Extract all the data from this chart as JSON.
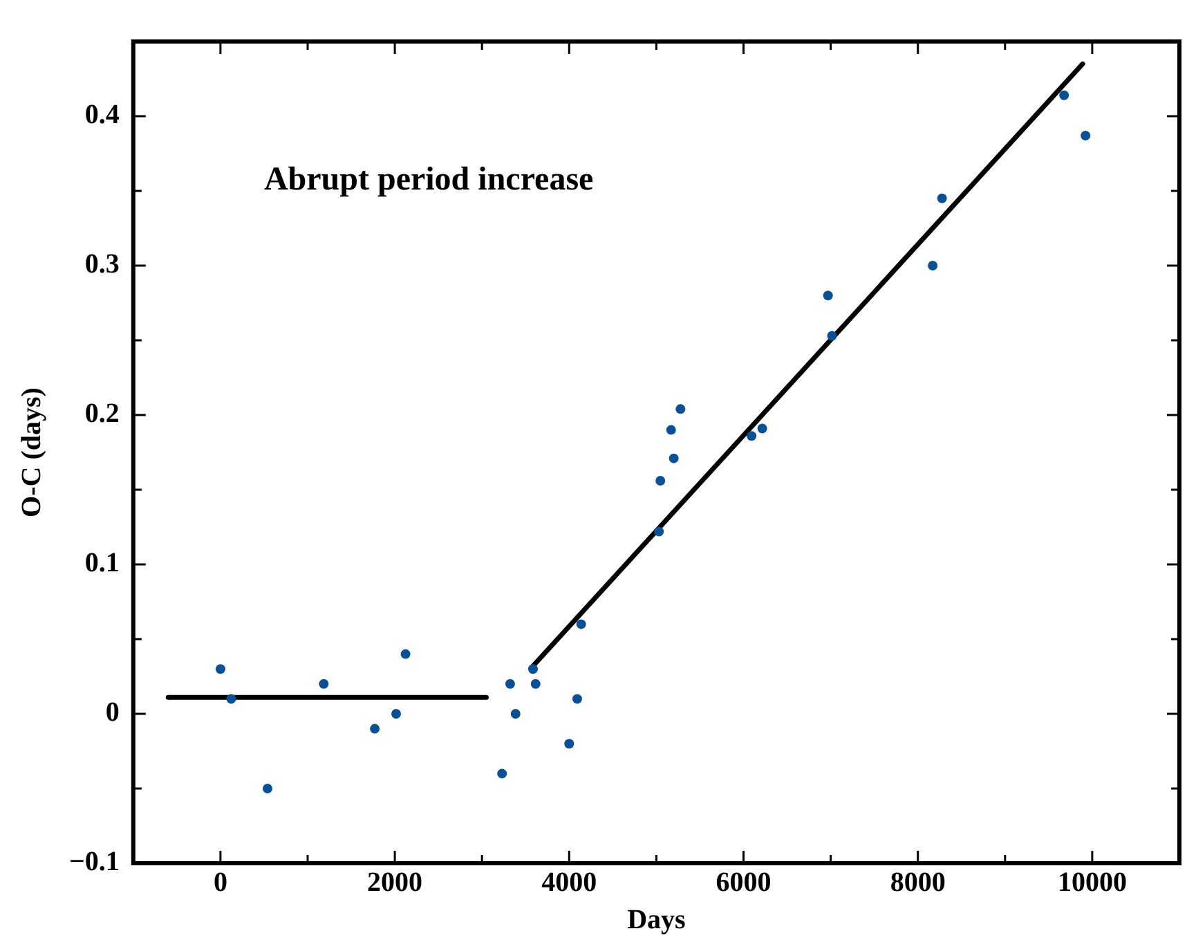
{
  "chart_data": {
    "type": "scatter",
    "xlabel": "Days",
    "ylabel": "O-C (days)",
    "annotations": [
      "Abrupt period increase"
    ],
    "xlim": [
      -1000,
      11000
    ],
    "ylim": [
      -0.1,
      0.45
    ],
    "xticks": [
      {
        "value": -1000,
        "label": null
      },
      0,
      {
        "value": 1000,
        "label": null
      },
      2000,
      {
        "value": 3000,
        "label": null
      },
      4000,
      {
        "value": 5000,
        "label": null
      },
      6000,
      {
        "value": 7000,
        "label": null
      },
      8000,
      {
        "value": 9000,
        "label": null
      },
      10000
    ],
    "yticks": [
      -0.1,
      {
        "value": -0.05,
        "label": null
      },
      0,
      {
        "value": 0.05,
        "label": null
      },
      0.1,
      {
        "value": 0.15,
        "label": null
      },
      0.2,
      {
        "value": 0.25,
        "label": null
      },
      0.3,
      {
        "value": 0.35,
        "label": null
      },
      0.4
    ],
    "grid": false,
    "legend": false,
    "series": [
      {
        "marker": "circle",
        "color": "#0b4f94",
        "x": [
          0,
          123,
          540,
          1185,
          1770,
          2015,
          2123,
          3230,
          3323,
          3385,
          3585,
          3615,
          4000,
          4092,
          4138,
          5030,
          5046,
          5169,
          5200,
          5277,
          6092,
          6215,
          6969,
          7015,
          8170,
          8277,
          9677,
          9923
        ],
        "values": [
          0.03,
          0.01,
          -0.05,
          0.02,
          -0.01,
          0,
          0.04,
          -0.04,
          0.02,
          0,
          0.03,
          0.02,
          -0.02,
          0.01,
          0.06,
          0.122,
          0.156,
          0.19,
          0.171,
          0.204,
          0.186,
          0.191,
          0.28,
          0.253,
          0.3,
          0.345,
          0.414,
          0.387
        ]
      },
      {
        "type": "line",
        "marker": "none",
        "color": "#000000",
        "x": [
          -600,
          3050
        ],
        "values": [
          0.011,
          0.011
        ]
      },
      {
        "type": "line",
        "marker": "none",
        "color": "#000000",
        "x": [
          3585,
          9890
        ],
        "values": [
          0.032,
          0.435
        ]
      }
    ]
  }
}
